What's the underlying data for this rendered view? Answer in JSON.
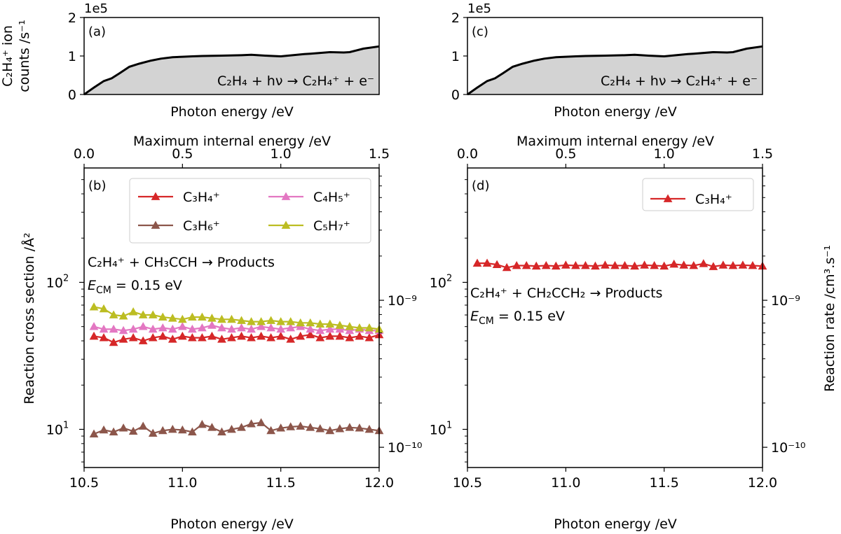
{
  "chart_data": [
    {
      "panel": "a",
      "type": "area",
      "panel_label": "(a)",
      "exponent_label": "1e5",
      "ylabel_lines": [
        "C₂H₄⁺ ion",
        "counts /s⁻¹"
      ],
      "xlabel": "Photon energy /eV",
      "annotation": "C₂H₄ + hν → C₂H₄⁺ + e⁻",
      "ylim": [
        0,
        2
      ],
      "yticks": [
        0,
        1,
        2
      ],
      "xlim": [
        10.5,
        12.0
      ],
      "fill_color": "#d3d3d3",
      "x": [
        10.5,
        10.55,
        10.6,
        10.64,
        10.68,
        10.73,
        10.78,
        10.84,
        10.89,
        10.95,
        11.0,
        11.05,
        11.1,
        11.2,
        11.3,
        11.35,
        11.42,
        11.5,
        11.56,
        11.62,
        11.65,
        11.75,
        11.82,
        11.85,
        11.92,
        12.0
      ],
      "values": [
        0.0,
        0.18,
        0.35,
        0.42,
        0.55,
        0.72,
        0.8,
        0.88,
        0.93,
        0.97,
        0.98,
        0.99,
        1.0,
        1.01,
        1.02,
        1.03,
        1.01,
        0.99,
        1.02,
        1.05,
        1.06,
        1.1,
        1.09,
        1.1,
        1.19,
        1.25
      ]
    },
    {
      "panel": "b",
      "type": "line",
      "panel_label": "(b)",
      "xlabel": "Photon energy /eV",
      "top_xlabel": "Maximum internal energy /eV",
      "ylabel": "Reaction cross section /Å²",
      "annotation_lines": [
        "C₂H₄⁺ + CH₃CCH → Products",
        "E_CM = 0.15 eV"
      ],
      "xlim": [
        10.5,
        12.0
      ],
      "xticks": [
        "10.5",
        "11.0",
        "11.5",
        "12.0"
      ],
      "top_xticks": [
        "0.0",
        "0.5",
        "1.0",
        "1.5"
      ],
      "ylim": [
        5.5,
        600
      ],
      "yscale": "log",
      "right_yticks": [
        "10⁻⁹",
        "10⁻¹⁰"
      ],
      "legend_location": "upper right",
      "x": [
        10.55,
        10.6,
        10.65,
        10.7,
        10.75,
        10.8,
        10.85,
        10.9,
        10.95,
        11.0,
        11.05,
        11.1,
        11.15,
        11.2,
        11.25,
        11.3,
        11.35,
        11.4,
        11.45,
        11.5,
        11.55,
        11.6,
        11.65,
        11.7,
        11.75,
        11.8,
        11.85,
        11.9,
        11.95,
        12.0
      ],
      "series": [
        {
          "name": "C₃H₄⁺",
          "color": "#d62728",
          "values": [
            43,
            42,
            39,
            41,
            42,
            40,
            42,
            43,
            41,
            43,
            42,
            42,
            43,
            41,
            42,
            43,
            42,
            43,
            42,
            43,
            41,
            43,
            44,
            42,
            43,
            43,
            42,
            43,
            42,
            44
          ]
        },
        {
          "name": "C₃H₆⁺",
          "color": "#8c564b",
          "values": [
            9.3,
            9.9,
            9.6,
            10.2,
            9.7,
            10.5,
            9.4,
            9.8,
            10.0,
            9.9,
            9.6,
            10.8,
            10.3,
            9.6,
            10.0,
            10.3,
            10.9,
            11.1,
            9.8,
            10.2,
            10.4,
            10.5,
            10.3,
            10.1,
            9.8,
            10.1,
            10.3,
            10.2,
            10.0,
            9.8
          ]
        },
        {
          "name": "C₄H₅⁺",
          "color": "#e377c2",
          "values": [
            50,
            48,
            48,
            47,
            48,
            50,
            48,
            49,
            48,
            50,
            48,
            49,
            51,
            49,
            48,
            49,
            48,
            50,
            49,
            48,
            49,
            50,
            48,
            47,
            48,
            48,
            47,
            48,
            47,
            47
          ]
        },
        {
          "name": "C₅H₇⁺",
          "color": "#bcbd22",
          "values": [
            68,
            66,
            60,
            59,
            63,
            60,
            60,
            58,
            57,
            56,
            58,
            58,
            57,
            56,
            56,
            55,
            54,
            54,
            55,
            54,
            54,
            53,
            53,
            52,
            52,
            51,
            50,
            49,
            49,
            48
          ]
        }
      ]
    },
    {
      "panel": "c",
      "type": "area",
      "panel_label": "(c)",
      "exponent_label": "1e5",
      "xlabel": "Photon energy /eV",
      "annotation": "C₂H₄ + hν → C₂H₄⁺ + e⁻",
      "ylim": [
        0,
        2
      ],
      "yticks": [
        0,
        1,
        2
      ],
      "xlim": [
        10.5,
        12.0
      ],
      "fill_color": "#d3d3d3",
      "x": [
        10.5,
        10.55,
        10.6,
        10.64,
        10.68,
        10.73,
        10.78,
        10.84,
        10.89,
        10.95,
        11.0,
        11.05,
        11.1,
        11.2,
        11.3,
        11.35,
        11.42,
        11.5,
        11.56,
        11.62,
        11.65,
        11.75,
        11.82,
        11.85,
        11.92,
        12.0
      ],
      "values": [
        0.0,
        0.18,
        0.35,
        0.42,
        0.55,
        0.72,
        0.8,
        0.88,
        0.93,
        0.97,
        0.98,
        0.99,
        1.0,
        1.01,
        1.02,
        1.03,
        1.01,
        0.99,
        1.02,
        1.05,
        1.06,
        1.1,
        1.09,
        1.1,
        1.19,
        1.25
      ]
    },
    {
      "panel": "d",
      "type": "line",
      "panel_label": "(d)",
      "xlabel": "Photon energy /eV",
      "top_xlabel": "Maximum internal energy /eV",
      "ylabel": "Reaction rate /cm³.s⁻¹",
      "annotation_lines": [
        "C₂H₄⁺ + CH₂CCH₂ → Products",
        "E_CM = 0.15 eV"
      ],
      "xlim": [
        10.5,
        12.0
      ],
      "xticks": [
        "10.5",
        "11.0",
        "11.5",
        "12.0"
      ],
      "top_xticks": [
        "0.0",
        "0.5",
        "1.0",
        "1.5"
      ],
      "ylim": [
        5.5,
        600
      ],
      "yscale": "log",
      "right_yticks": [
        "10⁻⁹",
        "10⁻¹⁰"
      ],
      "legend_location": "upper right",
      "x": [
        10.55,
        10.6,
        10.65,
        10.7,
        10.75,
        10.8,
        10.85,
        10.9,
        10.95,
        11.0,
        11.05,
        11.1,
        11.15,
        11.2,
        11.25,
        11.3,
        11.35,
        11.4,
        11.45,
        11.5,
        11.55,
        11.6,
        11.65,
        11.7,
        11.75,
        11.8,
        11.85,
        11.9,
        11.95,
        12.0
      ],
      "series": [
        {
          "name": "C₃H₄⁺",
          "color": "#d62728",
          "values": [
            135,
            135,
            132,
            126,
            130,
            130,
            129,
            130,
            129,
            131,
            130,
            130,
            129,
            131,
            130,
            130,
            129,
            131,
            130,
            129,
            133,
            131,
            130,
            134,
            128,
            131,
            130,
            131,
            130,
            129
          ]
        }
      ]
    }
  ]
}
